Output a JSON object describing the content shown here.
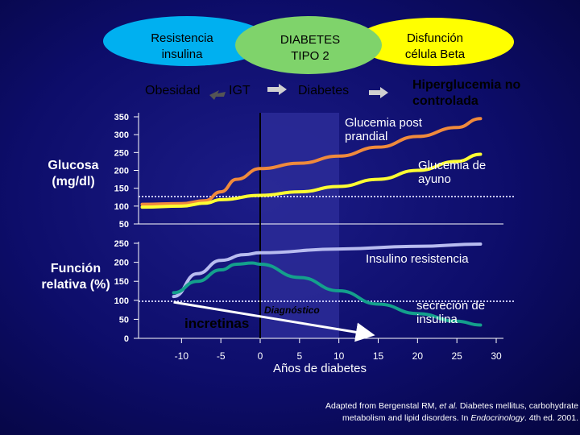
{
  "header": {
    "resistencia": [
      "Resistencia",
      "insulina"
    ],
    "diabetes_tipo2": [
      "DIABETES",
      "TIPO 2"
    ],
    "disfuncion": [
      "Disfunción",
      "célula Beta"
    ],
    "colors": {
      "left": "#00b0f0",
      "center": "#7fd36b",
      "right": "#ffff00"
    }
  },
  "stages": [
    "Obesidad",
    "IGT",
    "Diabetes",
    "Hiperglucemia no controlada"
  ],
  "chart_data": [
    {
      "type": "line",
      "ylabel": "Glucosa (mg/dl)",
      "yticks": [
        50,
        100,
        150,
        200,
        250,
        300,
        350
      ],
      "ylim": [
        50,
        350
      ],
      "xlim": [
        -15,
        30
      ],
      "threshold": 126,
      "series": [
        {
          "name": "Glucemia post prandial",
          "color": "#f08a3c",
          "x": [
            -15,
            -10,
            -7,
            -5,
            -3,
            0,
            5,
            10,
            15,
            20,
            25,
            28
          ],
          "y": [
            105,
            107,
            115,
            140,
            175,
            205,
            220,
            240,
            265,
            295,
            320,
            345
          ]
        },
        {
          "name": "Glucemia de ayuno",
          "color": "#ffff33",
          "x": [
            -15,
            -10,
            -7,
            -5,
            0,
            5,
            10,
            15,
            20,
            25,
            28
          ],
          "y": [
            97,
            100,
            108,
            118,
            130,
            140,
            155,
            175,
            200,
            225,
            245
          ]
        }
      ],
      "annotations": [
        "Glucemia post prandial",
        "Glucemia de ayuno"
      ]
    },
    {
      "type": "line",
      "ylabel": "Función relativa (%)",
      "xlabel": "Años de diabetes",
      "xticks": [
        -10,
        -5,
        0,
        5,
        10,
        15,
        20,
        25,
        30
      ],
      "yticks": [
        0,
        50,
        100,
        150,
        200,
        250
      ],
      "ylim": [
        0,
        250
      ],
      "xlim": [
        -15,
        30
      ],
      "threshold": 100,
      "shaded_region": [
        0,
        10
      ],
      "shaded_label": "Diagnóstico",
      "series": [
        {
          "name": "Insulino resistencia",
          "color": "#b8bcf0",
          "x": [
            -11,
            -8,
            -5,
            -2,
            0,
            10,
            20,
            28
          ],
          "y": [
            110,
            170,
            205,
            220,
            225,
            235,
            242,
            248
          ]
        },
        {
          "name": "secreción de insulina",
          "color": "#14a08c",
          "x": [
            -11,
            -8,
            -5,
            -3,
            -1,
            0,
            5,
            10,
            15,
            20,
            25,
            28
          ],
          "y": [
            120,
            150,
            180,
            195,
            198,
            195,
            160,
            125,
            90,
            65,
            45,
            35
          ]
        },
        {
          "name": "incretinas",
          "color": "#ffffff",
          "x": [
            -11,
            14
          ],
          "y": [
            95,
            10
          ]
        }
      ],
      "annotations": [
        "Insulino resistencia",
        "secreción de insulina",
        "incretinas"
      ]
    }
  ],
  "credit": {
    "line1_pre": "Adapted from Bergenstal RM, ",
    "line1_italic": "et al.",
    "line1_post": " Diabetes mellitus, carbohydrate",
    "line2_pre": "metabolism and lipid disorders. In ",
    "line2_italic": "Endocrinology",
    "line2_post": ". 4th ed. 2001."
  }
}
